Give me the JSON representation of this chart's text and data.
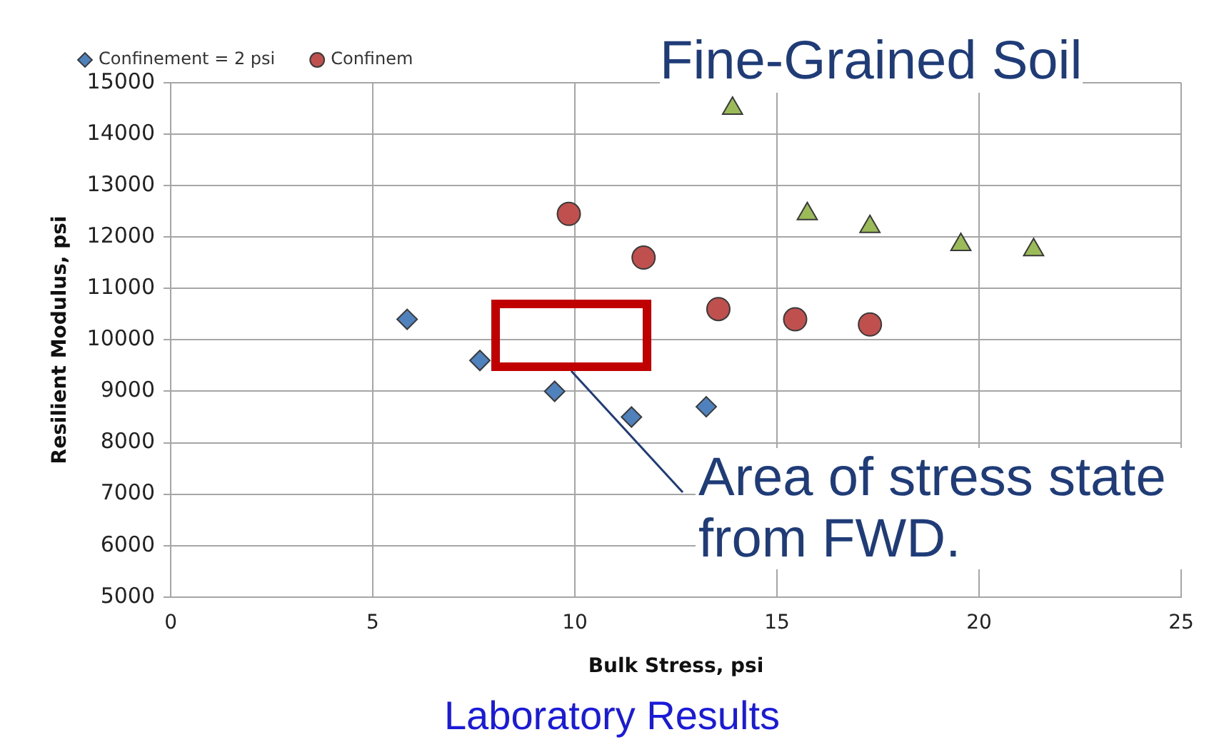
{
  "chart_data": {
    "type": "scatter",
    "xlabel": "Bulk Stress, psi",
    "ylabel": "Resilient Modulus, psi",
    "xlim": [
      0,
      25
    ],
    "xticks": [
      0,
      5,
      10,
      15,
      20,
      25
    ],
    "ylim": [
      5000,
      15000
    ],
    "yticks": [
      5000,
      6000,
      7000,
      8000,
      9000,
      10000,
      11000,
      12000,
      13000,
      14000,
      15000
    ],
    "grid": true,
    "legend": "top left",
    "series": [
      {
        "name": "Confinement = 2 psi",
        "color": "#4f81bd",
        "marker": "diamond",
        "x": [
          5.85,
          7.65,
          9.5,
          11.4,
          13.25
        ],
        "values": [
          10400,
          9600,
          9000,
          8500,
          8700
        ]
      },
      {
        "name": "Confinem",
        "color": "#c0504d",
        "marker": "circle",
        "x": [
          9.85,
          11.7,
          13.55,
          15.45,
          17.3
        ],
        "values": [
          12450,
          11600,
          10600,
          10400,
          10300
        ]
      },
      {
        "color": "#9bbb59",
        "marker": "triangle",
        "x": [
          13.9,
          15.75,
          17.3,
          19.55,
          21.35
        ],
        "values": [
          14500,
          12450,
          12200,
          11850,
          11750
        ]
      }
    ],
    "annotations": [
      "Fine-Grained Soil",
      "Area of stress state from FWD.",
      "Laboratory Results"
    ]
  }
}
